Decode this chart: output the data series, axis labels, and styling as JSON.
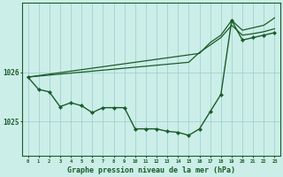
{
  "xlabel": "Graphe pression niveau de la mer (hPa)",
  "background_color": "#cceee8",
  "plot_bg_color": "#cceee8",
  "grid_color": "#99cccc",
  "line_color": "#1a5c2a",
  "ylim": [
    1024.3,
    1027.4
  ],
  "yticks": [
    1025,
    1026
  ],
  "upper_line1": [
    1025.9,
    1025.93,
    1025.96,
    1025.99,
    1026.02,
    1026.05,
    1026.08,
    1026.11,
    1026.14,
    1026.17,
    1026.2,
    1026.23,
    1026.26,
    1026.29,
    1026.32,
    1026.35,
    1026.38,
    1026.6,
    1026.75,
    1027.05,
    1026.85,
    1026.9,
    1026.95,
    1027.1
  ],
  "upper_line2": [
    1025.9,
    1025.92,
    1025.94,
    1025.96,
    1025.98,
    1026.0,
    1026.02,
    1026.04,
    1026.06,
    1026.08,
    1026.1,
    1026.12,
    1026.14,
    1026.16,
    1026.18,
    1026.2,
    1026.4,
    1026.55,
    1026.7,
    1026.95,
    1026.75,
    1026.78,
    1026.82,
    1026.88
  ],
  "main_line": [
    1025.9,
    1025.65,
    1025.6,
    1025.3,
    1025.38,
    1025.32,
    1025.18,
    1025.28,
    1025.28,
    1025.28,
    1024.85,
    1024.85,
    1024.85,
    1024.8,
    1024.78,
    1024.72,
    1024.85,
    1025.2,
    1025.55,
    1027.05,
    1026.65,
    1026.7,
    1026.75,
    1026.8
  ]
}
